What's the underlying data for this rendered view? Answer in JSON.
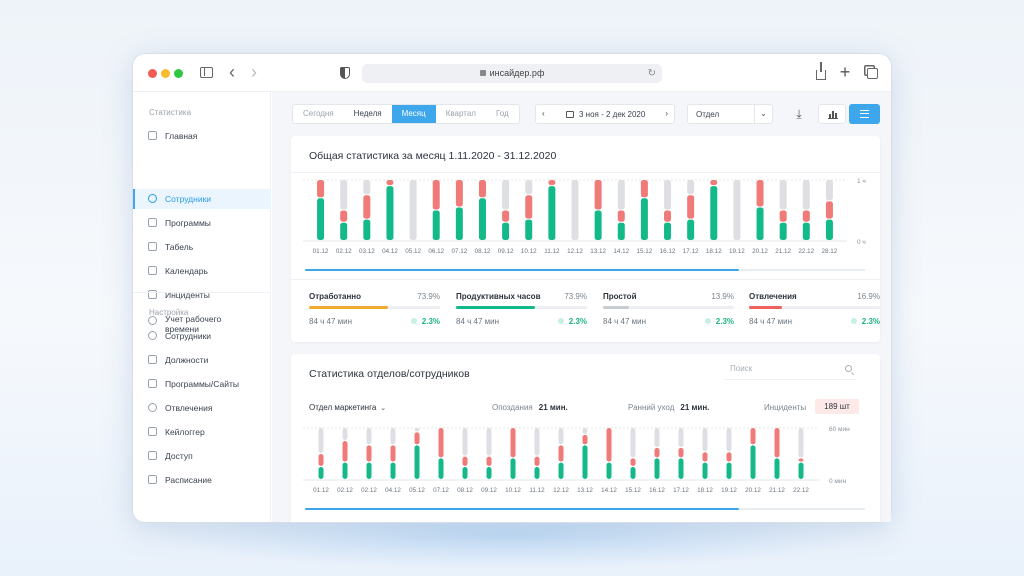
{
  "browser": {
    "url": "инсайдер.рф"
  },
  "sidebar": {
    "section_stats": "Статистика",
    "stats_items": [
      {
        "label": "Главная"
      },
      {
        "label": "Сотрудники",
        "active": true
      },
      {
        "label": "Программы"
      },
      {
        "label": "Табель"
      },
      {
        "label": "Календарь"
      },
      {
        "label": "Инциденты"
      },
      {
        "label": "Учет рабочего времени"
      }
    ],
    "section_settings": "Настройка",
    "settings_items": [
      {
        "label": "Сотрудники"
      },
      {
        "label": "Должности"
      },
      {
        "label": "Программы/Сайты"
      },
      {
        "label": "Отвлечения"
      },
      {
        "label": "Кейлоггер"
      },
      {
        "label": "Доступ"
      },
      {
        "label": "Расписание"
      }
    ]
  },
  "toolbar": {
    "period_tabs": [
      "Сегодня",
      "Неделя",
      "Месяц",
      "Квартал",
      "Год"
    ],
    "active_period": "Месяц",
    "date_prev": "‹",
    "date_next": "›",
    "date_range": "3 ноя - 2 дек 2020",
    "dept_select": "Отдел",
    "dept_chevron": "⌄"
  },
  "colors": {
    "accent": "#3ea7ec",
    "productive": "#14b98a",
    "distraction": "#f07a78",
    "idle": "#dddfe3"
  },
  "summary": {
    "title": "Общая статистика за месяц 1.11.2020 - 31.12.2020",
    "kpis": [
      {
        "name": "Отработанно",
        "percent": "73.9%",
        "fill": 0.6,
        "color": "#f0ab2f",
        "duration": "84 ч 47 мин",
        "trend": "2.3%"
      },
      {
        "name": "Продуктивных часов",
        "percent": "73.9%",
        "fill": 0.6,
        "color": "#14b98a",
        "duration": "84 ч 47 мин",
        "trend": "2.3%"
      },
      {
        "name": "Простой",
        "percent": "13.9%",
        "fill": 0.2,
        "color": "#c8ccd3",
        "duration": "84 ч 47 мин",
        "trend": "2.3%"
      },
      {
        "name": "Отвлечения",
        "percent": "16.9%",
        "fill": 0.25,
        "color": "#f0605d",
        "duration": "84 ч 47 мин",
        "trend": "2.3%"
      }
    ]
  },
  "chart_data": [
    {
      "type": "bar",
      "categories": [
        "01.12",
        "02.12",
        "03.12",
        "04.12",
        "05.12",
        "06.12",
        "07.12",
        "08.12",
        "09.12",
        "10.12",
        "11.12",
        "12.12",
        "13.12",
        "14.12",
        "15.12",
        "16.12",
        "17.12",
        "18.12",
        "19.12",
        "20.12",
        "21.12",
        "22.12",
        "28.12"
      ],
      "series": [
        {
          "values": [
            0.7,
            0.3,
            0.35,
            0.9,
            0,
            0.5,
            0.55,
            0.7,
            0.3,
            0.35,
            0.9,
            0,
            0.5,
            0.3,
            0.7,
            0.3,
            0.35,
            0.9,
            0,
            0.55,
            0.3,
            0.3,
            0.35
          ]
        },
        {
          "values": [
            0.3,
            0.2,
            0.4,
            0.1,
            0,
            0.5,
            0.45,
            0.3,
            0.2,
            0.4,
            0.1,
            0,
            0.5,
            0.2,
            0.3,
            0.2,
            0.4,
            0.1,
            0,
            0.45,
            0.2,
            0.2,
            0.3
          ]
        },
        {
          "values": [
            0,
            0.5,
            0.25,
            0,
            1,
            0,
            0,
            0,
            0.5,
            0.25,
            0,
            1,
            0,
            0.5,
            0,
            0.5,
            0.25,
            0,
            1,
            0,
            0.5,
            0.5,
            0.35
          ]
        }
      ],
      "y_tick_labels": [
        "1 ч",
        "0 ч"
      ],
      "ylim": [
        0,
        1
      ],
      "grid": true
    },
    {
      "type": "bar",
      "categories": [
        "01.12",
        "02.12",
        "02.12",
        "04.12",
        "05.12",
        "07.12",
        "08.12",
        "09.12",
        "10.12",
        "11.12",
        "12.12",
        "13.12",
        "14.12",
        "15.12",
        "16.12",
        "17.12",
        "18.12",
        "19.12",
        "20.12",
        "21.12",
        "22.12"
      ],
      "series": [
        {
          "values": [
            15,
            20,
            20,
            20,
            40,
            25,
            15,
            15,
            25,
            15,
            20,
            40,
            20,
            15,
            25,
            25,
            20,
            20,
            40,
            25,
            20
          ]
        },
        {
          "values": [
            15,
            25,
            20,
            20,
            15,
            35,
            12,
            12,
            35,
            12,
            20,
            12,
            40,
            10,
            12,
            12,
            12,
            12,
            20,
            35,
            5
          ]
        },
        {
          "values": [
            30,
            15,
            20,
            20,
            5,
            0,
            33,
            33,
            0,
            33,
            20,
            8,
            0,
            35,
            23,
            23,
            28,
            28,
            0,
            0,
            35
          ]
        }
      ],
      "y_tick_labels": [
        "60 мин",
        "0 мин"
      ],
      "ylim": [
        0,
        60
      ],
      "grid": true
    }
  ],
  "departments": {
    "title": "Статистика отделов/сотрудников",
    "search_placeholder": "Поиск",
    "dept_dropdown": "Отдел маркетинга",
    "dept_chevron": "⌄",
    "late_label": "Опоздания",
    "late_value": "21 мин.",
    "early_label": "Ранний уход",
    "early_value": "21 мин.",
    "incidents_label": "Инциденты",
    "incidents_value": "189 шт"
  }
}
